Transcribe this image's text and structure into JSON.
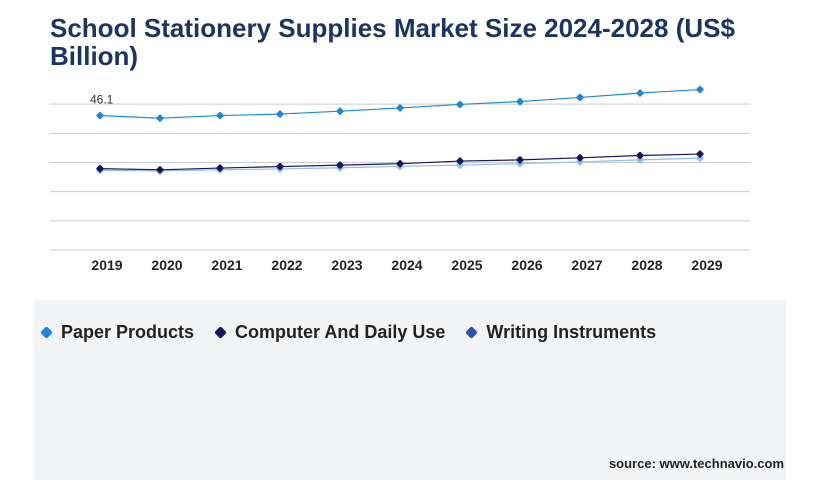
{
  "title": "School Stationery Supplies Market Size 2024-2028 (US$ Billion)",
  "source": "source: www.technavio.com",
  "colors": {
    "title": "#1c3461",
    "grid": "#cccccc",
    "paper": "#1e88d6",
    "computer": "#1a1560",
    "writing": "#8fbef0"
  },
  "chart_data": {
    "type": "line",
    "categories": [
      "2019",
      "2020",
      "2021",
      "2022",
      "2023",
      "2024",
      "2025",
      "2026",
      "2027",
      "2028",
      "2029"
    ],
    "ylim": [
      0,
      60
    ],
    "grid": true,
    "legend_position": "bottom-left",
    "annotations": [
      {
        "series": "Paper Products",
        "category": "2019",
        "text": "46.1"
      }
    ],
    "series": [
      {
        "name": "Paper Products",
        "values": [
          46.1,
          45.2,
          46.1,
          46.6,
          47.6,
          48.7,
          49.9,
          50.9,
          52.3,
          53.8,
          55.0
        ]
      },
      {
        "name": "Computer And Daily Use",
        "values": [
          27.9,
          27.5,
          28.1,
          28.6,
          29.1,
          29.6,
          30.5,
          30.9,
          31.6,
          32.4,
          32.9
        ]
      },
      {
        "name": "Writing Instruments",
        "values": [
          27.3,
          27.1,
          27.5,
          27.8,
          28.2,
          28.7,
          29.1,
          29.6,
          30.2,
          30.9,
          31.5
        ]
      }
    ]
  }
}
